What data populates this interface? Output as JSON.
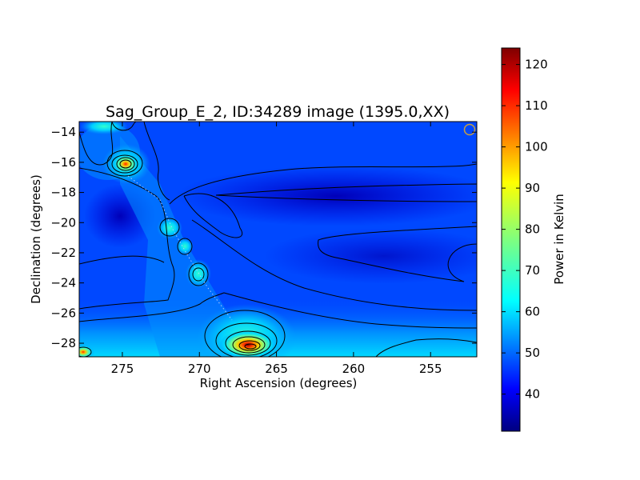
{
  "chart_data": {
    "type": "heatmap",
    "title": "Sag_Group_E_2, ID:34289 image (1395.0,XX)",
    "xlabel": "Right Ascension (degrees)",
    "ylabel": "Declination (degrees)",
    "xlim": [
      277.8,
      252.0
    ],
    "ylim": [
      -28.9,
      -13.3
    ],
    "x_ticks": [
      {
        "value": 275,
        "label": "275"
      },
      {
        "value": 270,
        "label": "270"
      },
      {
        "value": 265,
        "label": "265"
      },
      {
        "value": 260,
        "label": "260"
      },
      {
        "value": 255,
        "label": "255"
      }
    ],
    "y_ticks": [
      {
        "value": -14,
        "label": "−14"
      },
      {
        "value": -16,
        "label": "−16"
      },
      {
        "value": -18,
        "label": "−18"
      },
      {
        "value": -20,
        "label": "−20"
      },
      {
        "value": -22,
        "label": "−22"
      },
      {
        "value": -24,
        "label": "−24"
      },
      {
        "value": -26,
        "label": "−26"
      },
      {
        "value": -28,
        "label": "−28"
      }
    ],
    "colorbar": {
      "label": "Power in Kelvin",
      "range": [
        31,
        124
      ],
      "colormap": "jet",
      "ticks": [
        {
          "value": 40,
          "label": "40"
        },
        {
          "value": 50,
          "label": "50"
        },
        {
          "value": 60,
          "label": "60"
        },
        {
          "value": 70,
          "label": "70"
        },
        {
          "value": 80,
          "label": "80"
        },
        {
          "value": 90,
          "label": "90"
        },
        {
          "value": 100,
          "label": "100"
        },
        {
          "value": 110,
          "label": "110"
        },
        {
          "value": 120,
          "label": "120"
        }
      ]
    },
    "peaks": [
      {
        "ra": 266.6,
        "dec": -28.3,
        "power": 124
      },
      {
        "ra": 275.0,
        "dec": -16.2,
        "power": 105
      },
      {
        "ra": 270.3,
        "dec": -23.5,
        "power": 64
      },
      {
        "ra": 271.9,
        "dec": -20.3,
        "power": 60
      },
      {
        "ra": 277.4,
        "dec": -28.7,
        "power": 75
      }
    ],
    "beam_marker": {
      "ra": 252.4,
      "dec": -13.8
    }
  }
}
